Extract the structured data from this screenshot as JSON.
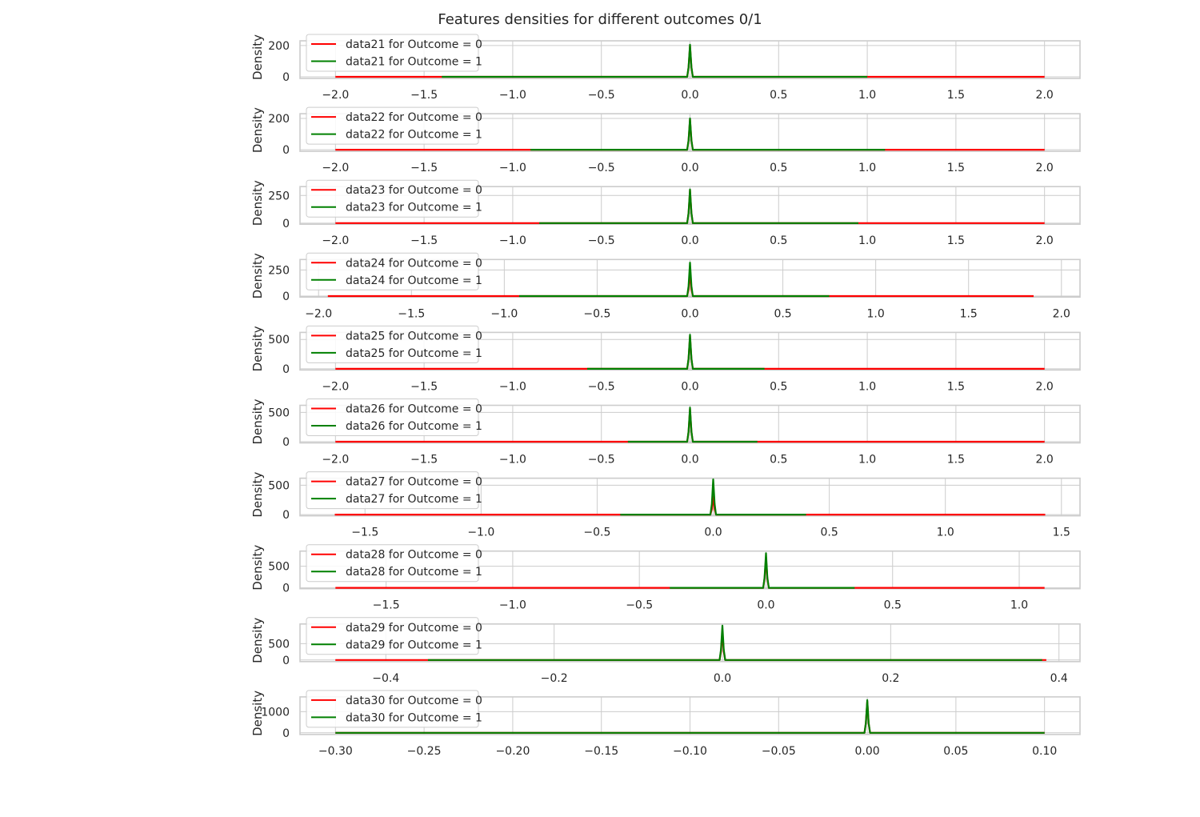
{
  "title": "Features densities for different outcomes 0/1",
  "colors": {
    "outcome0": "#ff0000",
    "outcome1": "#008000",
    "grid": "#cccccc",
    "frame": "#cccccc"
  },
  "chart_data": [
    {
      "type": "line",
      "ylabel": "Density",
      "xlim": [
        -2.2,
        2.2
      ],
      "ylim": [
        -10,
        230
      ],
      "xticks": [
        -2.0,
        -1.5,
        -1.0,
        -0.5,
        0.0,
        0.5,
        1.0,
        1.5,
        2.0
      ],
      "xtick_labels": [
        "−2.0",
        "−1.5",
        "−1.0",
        "−0.5",
        "0.0",
        "0.5",
        "1.0",
        "1.5",
        "2.0"
      ],
      "yticks": [
        0,
        200
      ],
      "ytick_labels": [
        "0",
        "200"
      ],
      "series": [
        {
          "name": "data21 for Outcome = 0",
          "color": "#ff0000",
          "x": [
            -2.0,
            2.0
          ],
          "peak": 200
        },
        {
          "name": "data21 for Outcome = 1",
          "color": "#008000",
          "x": [
            -1.4,
            1.0
          ],
          "peak": 205
        }
      ]
    },
    {
      "type": "line",
      "ylabel": "Density",
      "xlim": [
        -2.2,
        2.2
      ],
      "ylim": [
        -10,
        230
      ],
      "xticks": [
        -2.0,
        -1.5,
        -1.0,
        -0.5,
        0.0,
        0.5,
        1.0,
        1.5,
        2.0
      ],
      "xtick_labels": [
        "−2.0",
        "−1.5",
        "−1.0",
        "−0.5",
        "0.0",
        "0.5",
        "1.0",
        "1.5",
        "2.0"
      ],
      "yticks": [
        0,
        200
      ],
      "ytick_labels": [
        "0",
        "200"
      ],
      "series": [
        {
          "name": "data22 for Outcome = 0",
          "color": "#ff0000",
          "x": [
            -2.0,
            2.0
          ],
          "peak": 195
        },
        {
          "name": "data22 for Outcome = 1",
          "color": "#008000",
          "x": [
            -0.9,
            1.1
          ],
          "peak": 200
        }
      ]
    },
    {
      "type": "line",
      "ylabel": "Density",
      "xlim": [
        -2.2,
        2.2
      ],
      "ylim": [
        -10,
        330
      ],
      "xticks": [
        -2.0,
        -1.5,
        -1.0,
        -0.5,
        0.0,
        0.5,
        1.0,
        1.5,
        2.0
      ],
      "xtick_labels": [
        "−2.0",
        "−1.5",
        "−1.0",
        "−0.5",
        "0.0",
        "0.5",
        "1.0",
        "1.5",
        "2.0"
      ],
      "yticks": [
        0,
        250
      ],
      "ytick_labels": [
        "0",
        "250"
      ],
      "series": [
        {
          "name": "data23 for Outcome = 0",
          "color": "#ff0000",
          "x": [
            -2.0,
            2.0
          ],
          "peak": 300
        },
        {
          "name": "data23 for Outcome = 1",
          "color": "#008000",
          "x": [
            -0.85,
            0.95
          ],
          "peak": 305
        }
      ]
    },
    {
      "type": "line",
      "ylabel": "Density",
      "xlim": [
        -2.1,
        2.1
      ],
      "ylim": [
        -10,
        350
      ],
      "xticks": [
        -2.0,
        -1.5,
        -1.0,
        -0.5,
        0.0,
        0.5,
        1.0,
        1.5,
        2.0
      ],
      "xtick_labels": [
        "−2.0",
        "−1.5",
        "−1.0",
        "−0.5",
        "0.0",
        "0.5",
        "1.0",
        "1.5",
        "2.0"
      ],
      "yticks": [
        0,
        250
      ],
      "ytick_labels": [
        "0",
        "250"
      ],
      "series": [
        {
          "name": "data24 for Outcome = 0",
          "color": "#ff0000",
          "x": [
            -1.95,
            1.85
          ],
          "peak": 220
        },
        {
          "name": "data24 for Outcome = 1",
          "color": "#008000",
          "x": [
            -0.92,
            0.75
          ],
          "peak": 320
        }
      ]
    },
    {
      "type": "line",
      "ylabel": "Density",
      "xlim": [
        -2.2,
        2.2
      ],
      "ylim": [
        -20,
        620
      ],
      "xticks": [
        -2.0,
        -1.5,
        -1.0,
        -0.5,
        0.0,
        0.5,
        1.0,
        1.5,
        2.0
      ],
      "xtick_labels": [
        "−2.0",
        "−1.5",
        "−1.0",
        "−0.5",
        "0.0",
        "0.5",
        "1.0",
        "1.5",
        "2.0"
      ],
      "yticks": [
        0,
        500
      ],
      "ytick_labels": [
        "0",
        "500"
      ],
      "series": [
        {
          "name": "data25 for Outcome = 0",
          "color": "#ff0000",
          "x": [
            -2.0,
            2.0
          ],
          "peak": 560
        },
        {
          "name": "data25 for Outcome = 1",
          "color": "#008000",
          "x": [
            -0.58,
            0.42
          ],
          "peak": 580
        }
      ]
    },
    {
      "type": "line",
      "ylabel": "Density",
      "xlim": [
        -2.2,
        2.2
      ],
      "ylim": [
        -20,
        620
      ],
      "xticks": [
        -2.0,
        -1.5,
        -1.0,
        -0.5,
        0.0,
        0.5,
        1.0,
        1.5,
        2.0
      ],
      "xtick_labels": [
        "−2.0",
        "−1.5",
        "−1.0",
        "−0.5",
        "0.0",
        "0.5",
        "1.0",
        "1.5",
        "2.0"
      ],
      "yticks": [
        0,
        500
      ],
      "ytick_labels": [
        "0",
        "500"
      ],
      "series": [
        {
          "name": "data26 for Outcome = 0",
          "color": "#ff0000",
          "x": [
            -2.0,
            2.0
          ],
          "peak": 560
        },
        {
          "name": "data26 for Outcome = 1",
          "color": "#008000",
          "x": [
            -0.35,
            0.38
          ],
          "peak": 580
        }
      ]
    },
    {
      "type": "line",
      "ylabel": "Density",
      "xlim": [
        -1.78,
        1.58
      ],
      "ylim": [
        -20,
        620
      ],
      "xticks": [
        -1.5,
        -1.0,
        -0.5,
        0.0,
        0.5,
        1.0,
        1.5
      ],
      "xtick_labels": [
        "−1.5",
        "−1.0",
        "−0.5",
        "0.0",
        "0.5",
        "1.0",
        "1.5"
      ],
      "yticks": [
        0,
        500
      ],
      "ytick_labels": [
        "0",
        "500"
      ],
      "series": [
        {
          "name": "data27 for Outcome = 0",
          "color": "#ff0000",
          "x": [
            -1.63,
            1.43
          ],
          "peak": 300
        },
        {
          "name": "data27 for Outcome = 1",
          "color": "#008000",
          "x": [
            -0.4,
            0.4
          ],
          "peak": 600
        }
      ]
    },
    {
      "type": "line",
      "ylabel": "Density",
      "xlim": [
        -1.84,
        1.24
      ],
      "ylim": [
        -20,
        850
      ],
      "xticks": [
        -1.5,
        -1.0,
        -0.5,
        0.0,
        0.5,
        1.0
      ],
      "xtick_labels": [
        "−1.5",
        "−1.0",
        "−0.5",
        "0.0",
        "0.5",
        "1.0"
      ],
      "yticks": [
        0,
        500
      ],
      "ytick_labels": [
        "0",
        "500"
      ],
      "series": [
        {
          "name": "data28 for Outcome = 0",
          "color": "#ff0000",
          "x": [
            -1.7,
            1.1
          ],
          "peak": 700
        },
        {
          "name": "data28 for Outcome = 1",
          "color": "#008000",
          "x": [
            -0.38,
            0.35
          ],
          "peak": 800
        }
      ]
    },
    {
      "type": "line",
      "ylabel": "Density",
      "xlim": [
        -0.502,
        0.425
      ],
      "ylim": [
        -50,
        1100
      ],
      "xticks": [
        -0.4,
        -0.2,
        0.0,
        0.2,
        0.4
      ],
      "xtick_labels": [
        "−0.4",
        "−0.2",
        "0.0",
        "0.2",
        "0.4"
      ],
      "yticks": [
        0,
        500
      ],
      "ytick_labels": [
        "0",
        "500"
      ],
      "series": [
        {
          "name": "data29 for Outcome = 0",
          "color": "#ff0000",
          "x": [
            -0.46,
            0.385
          ],
          "peak": 850
        },
        {
          "name": "data29 for Outcome = 1",
          "color": "#008000",
          "x": [
            -0.35,
            0.38
          ],
          "peak": 1050
        }
      ]
    },
    {
      "type": "line",
      "ylabel": "Density",
      "xlim": [
        -0.32,
        0.12
      ],
      "ylim": [
        -80,
        1700
      ],
      "xticks": [
        -0.3,
        -0.25,
        -0.2,
        -0.15,
        -0.1,
        -0.05,
        0.0,
        0.05,
        0.1
      ],
      "xtick_labels": [
        "−0.30",
        "−0.25",
        "−0.20",
        "−0.15",
        "−0.10",
        "−0.05",
        "0.00",
        "0.05",
        "0.10"
      ],
      "yticks": [
        0,
        1000
      ],
      "ytick_labels": [
        "0",
        "1000"
      ],
      "series": [
        {
          "name": "data30 for Outcome = 0",
          "color": "#ff0000",
          "x": [
            -0.3,
            0.1
          ],
          "peak": 1500
        },
        {
          "name": "data30 for Outcome = 1",
          "color": "#008000",
          "x": [
            -0.3,
            0.1
          ],
          "peak": 1550
        }
      ]
    }
  ]
}
